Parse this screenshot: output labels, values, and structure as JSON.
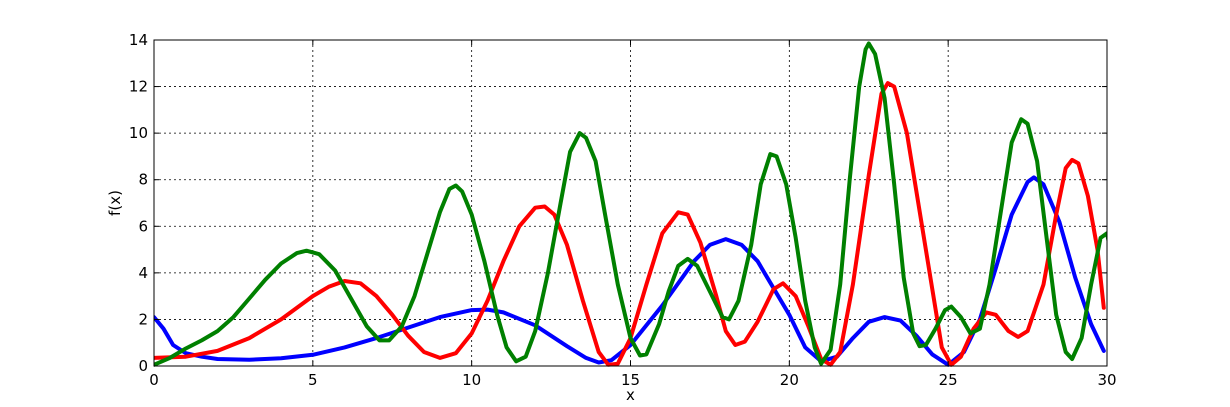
{
  "chart_data": {
    "type": "line",
    "title": "",
    "xlabel": "x",
    "ylabel": "f(x)",
    "xlim": [
      0,
      30
    ],
    "ylim": [
      0,
      14
    ],
    "xticks": [
      0,
      5,
      10,
      15,
      20,
      25,
      30
    ],
    "yticks": [
      0,
      2,
      4,
      6,
      8,
      10,
      12,
      14
    ],
    "grid": true,
    "legend": "none",
    "series": [
      {
        "color": "#0000ff",
        "points": [
          [
            0,
            2.1
          ],
          [
            0.3,
            1.6
          ],
          [
            0.6,
            0.9
          ],
          [
            1,
            0.55
          ],
          [
            1.5,
            0.4
          ],
          [
            2,
            0.3
          ],
          [
            3,
            0.27
          ],
          [
            4,
            0.33
          ],
          [
            5,
            0.48
          ],
          [
            6,
            0.8
          ],
          [
            7,
            1.2
          ],
          [
            8,
            1.65
          ],
          [
            9,
            2.1
          ],
          [
            10,
            2.4
          ],
          [
            10.5,
            2.42
          ],
          [
            11,
            2.3
          ],
          [
            12,
            1.75
          ],
          [
            13,
            0.85
          ],
          [
            13.6,
            0.35
          ],
          [
            14,
            0.15
          ],
          [
            14.4,
            0.25
          ],
          [
            15,
            0.9
          ],
          [
            16,
            2.6
          ],
          [
            17,
            4.5
          ],
          [
            17.5,
            5.2
          ],
          [
            18,
            5.45
          ],
          [
            18.5,
            5.2
          ],
          [
            19,
            4.5
          ],
          [
            20,
            2.2
          ],
          [
            20.5,
            0.8
          ],
          [
            21,
            0.2
          ],
          [
            21.5,
            0.4
          ],
          [
            22,
            1.2
          ],
          [
            22.5,
            1.9
          ],
          [
            23,
            2.1
          ],
          [
            23.5,
            1.95
          ],
          [
            24,
            1.3
          ],
          [
            24.5,
            0.5
          ],
          [
            25,
            0.05
          ],
          [
            25.5,
            0.6
          ],
          [
            26,
            2.0
          ],
          [
            26.5,
            4.2
          ],
          [
            27,
            6.5
          ],
          [
            27.5,
            7.9
          ],
          [
            27.7,
            8.1
          ],
          [
            28,
            7.8
          ],
          [
            28.5,
            6.2
          ],
          [
            29,
            3.8
          ],
          [
            29.5,
            1.8
          ],
          [
            29.9,
            0.65
          ]
        ]
      },
      {
        "color": "#ff0000",
        "points": [
          [
            0,
            0.35
          ],
          [
            1,
            0.4
          ],
          [
            2,
            0.65
          ],
          [
            3,
            1.2
          ],
          [
            4,
            2.0
          ],
          [
            5,
            3.0
          ],
          [
            5.5,
            3.4
          ],
          [
            6,
            3.65
          ],
          [
            6.5,
            3.55
          ],
          [
            7,
            3.0
          ],
          [
            7.5,
            2.2
          ],
          [
            8,
            1.3
          ],
          [
            8.5,
            0.6
          ],
          [
            9,
            0.35
          ],
          [
            9.5,
            0.55
          ],
          [
            10,
            1.4
          ],
          [
            10.5,
            2.8
          ],
          [
            11,
            4.5
          ],
          [
            11.5,
            6.0
          ],
          [
            12,
            6.8
          ],
          [
            12.3,
            6.85
          ],
          [
            12.6,
            6.5
          ],
          [
            13,
            5.2
          ],
          [
            13.5,
            2.8
          ],
          [
            14,
            0.6
          ],
          [
            14.3,
            0.05
          ],
          [
            14.6,
            0.1
          ],
          [
            15,
            1.2
          ],
          [
            15.5,
            3.5
          ],
          [
            16,
            5.7
          ],
          [
            16.5,
            6.6
          ],
          [
            16.8,
            6.5
          ],
          [
            17.2,
            5.3
          ],
          [
            17.7,
            3.0
          ],
          [
            18,
            1.5
          ],
          [
            18.3,
            0.9
          ],
          [
            18.6,
            1.05
          ],
          [
            19,
            1.9
          ],
          [
            19.5,
            3.3
          ],
          [
            19.8,
            3.55
          ],
          [
            20.2,
            3.0
          ],
          [
            20.6,
            1.7
          ],
          [
            21,
            0.3
          ],
          [
            21.3,
            0.05
          ],
          [
            21.6,
            0.6
          ],
          [
            22,
            3.5
          ],
          [
            22.5,
            8.2
          ],
          [
            22.9,
            11.7
          ],
          [
            23.1,
            12.15
          ],
          [
            23.3,
            12.0
          ],
          [
            23.7,
            10.0
          ],
          [
            24,
            7.5
          ],
          [
            24.5,
            3.3
          ],
          [
            24.8,
            0.8
          ],
          [
            25.1,
            0.05
          ],
          [
            25.4,
            0.4
          ],
          [
            25.8,
            1.6
          ],
          [
            26.2,
            2.3
          ],
          [
            26.5,
            2.2
          ],
          [
            26.9,
            1.5
          ],
          [
            27.2,
            1.25
          ],
          [
            27.5,
            1.5
          ],
          [
            28,
            3.5
          ],
          [
            28.4,
            6.5
          ],
          [
            28.7,
            8.5
          ],
          [
            28.9,
            8.85
          ],
          [
            29.1,
            8.7
          ],
          [
            29.4,
            7.3
          ],
          [
            29.7,
            5.0
          ],
          [
            29.9,
            2.5
          ]
        ]
      },
      {
        "color": "#008000",
        "points": [
          [
            0,
            0.05
          ],
          [
            0.5,
            0.35
          ],
          [
            1,
            0.75
          ],
          [
            1.5,
            1.1
          ],
          [
            2,
            1.5
          ],
          [
            2.5,
            2.1
          ],
          [
            3,
            2.9
          ],
          [
            3.5,
            3.7
          ],
          [
            4,
            4.4
          ],
          [
            4.5,
            4.85
          ],
          [
            4.8,
            4.95
          ],
          [
            5.2,
            4.8
          ],
          [
            5.7,
            4.1
          ],
          [
            6.2,
            2.9
          ],
          [
            6.7,
            1.7
          ],
          [
            7.1,
            1.1
          ],
          [
            7.4,
            1.1
          ],
          [
            7.8,
            1.7
          ],
          [
            8.2,
            3.0
          ],
          [
            8.6,
            4.8
          ],
          [
            9,
            6.6
          ],
          [
            9.3,
            7.6
          ],
          [
            9.5,
            7.75
          ],
          [
            9.7,
            7.5
          ],
          [
            10,
            6.5
          ],
          [
            10.4,
            4.5
          ],
          [
            10.8,
            2.2
          ],
          [
            11.1,
            0.8
          ],
          [
            11.4,
            0.2
          ],
          [
            11.7,
            0.4
          ],
          [
            12,
            1.5
          ],
          [
            12.4,
            4.0
          ],
          [
            12.8,
            7.0
          ],
          [
            13.1,
            9.2
          ],
          [
            13.4,
            10.0
          ],
          [
            13.6,
            9.8
          ],
          [
            13.9,
            8.8
          ],
          [
            14.2,
            6.5
          ],
          [
            14.6,
            3.5
          ],
          [
            15,
            1.2
          ],
          [
            15.3,
            0.45
          ],
          [
            15.5,
            0.5
          ],
          [
            15.9,
            1.8
          ],
          [
            16.2,
            3.2
          ],
          [
            16.5,
            4.3
          ],
          [
            16.8,
            4.6
          ],
          [
            17.1,
            4.3
          ],
          [
            17.5,
            3.2
          ],
          [
            17.9,
            2.1
          ],
          [
            18.1,
            2.0
          ],
          [
            18.4,
            2.8
          ],
          [
            18.8,
            5.2
          ],
          [
            19.1,
            7.8
          ],
          [
            19.4,
            9.1
          ],
          [
            19.6,
            9.0
          ],
          [
            19.9,
            7.8
          ],
          [
            20.2,
            5.5
          ],
          [
            20.5,
            2.8
          ],
          [
            20.8,
            0.8
          ],
          [
            21,
            0.1
          ],
          [
            21.3,
            0.7
          ],
          [
            21.6,
            3.5
          ],
          [
            21.9,
            8.0
          ],
          [
            22.2,
            12.0
          ],
          [
            22.4,
            13.6
          ],
          [
            22.5,
            13.85
          ],
          [
            22.7,
            13.4
          ],
          [
            23,
            11.5
          ],
          [
            23.3,
            7.8
          ],
          [
            23.6,
            3.8
          ],
          [
            23.9,
            1.4
          ],
          [
            24.1,
            0.85
          ],
          [
            24.3,
            0.9
          ],
          [
            24.6,
            1.6
          ],
          [
            24.9,
            2.4
          ],
          [
            25.1,
            2.55
          ],
          [
            25.4,
            2.1
          ],
          [
            25.7,
            1.4
          ],
          [
            26,
            1.6
          ],
          [
            26.3,
            3.5
          ],
          [
            26.7,
            7.0
          ],
          [
            27,
            9.6
          ],
          [
            27.3,
            10.6
          ],
          [
            27.5,
            10.4
          ],
          [
            27.8,
            8.8
          ],
          [
            28.1,
            5.5
          ],
          [
            28.4,
            2.2
          ],
          [
            28.7,
            0.6
          ],
          [
            28.9,
            0.3
          ],
          [
            29.2,
            1.2
          ],
          [
            29.5,
            3.5
          ],
          [
            29.8,
            5.5
          ],
          [
            30,
            5.7
          ],
          [
            30.1,
            5.0
          ]
        ]
      }
    ]
  }
}
